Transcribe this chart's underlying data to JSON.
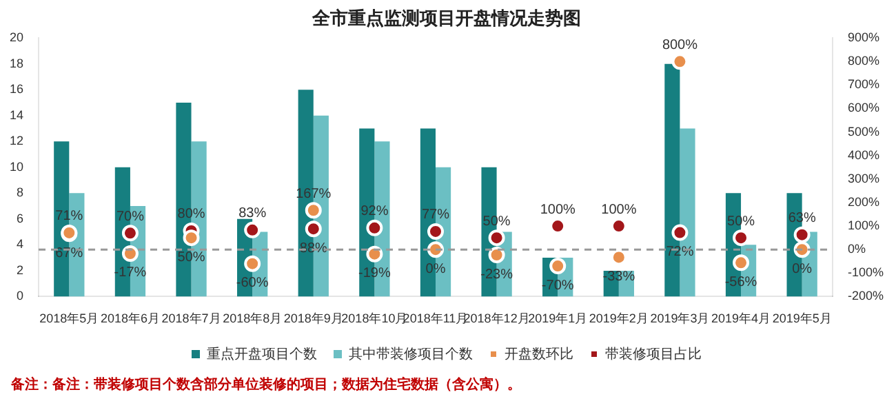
{
  "chart_data": {
    "type": "bar",
    "title": "全市重点监测项目开盘情况走势图",
    "categories": [
      "2018年5月",
      "2018年6月",
      "2018年7月",
      "2018年8月",
      "2018年9月",
      "2018年10月",
      "2018年11月",
      "2018年12月",
      "2019年1月",
      "2019年2月",
      "2019年3月",
      "2019年4月",
      "2019年5月"
    ],
    "series": [
      {
        "name": "重点开盘项目个数",
        "color": "#167f80",
        "values": [
          12,
          10,
          15,
          6,
          16,
          13,
          13,
          10,
          3,
          2,
          18,
          8,
          8
        ]
      },
      {
        "name": "其中带装修项目个数",
        "color": "#6bbfc3",
        "values": [
          8,
          7,
          12,
          5,
          14,
          12,
          10,
          5,
          3,
          2,
          13,
          4,
          5
        ]
      },
      {
        "name": "开盘数环比",
        "type": "scatter",
        "axis": "y2",
        "color": "#e88f4c",
        "values": [
          71,
          -17,
          50,
          -60,
          167,
          -19,
          0,
          -23,
          -70,
          -33,
          800,
          -56,
          0
        ],
        "value_labels": [
          "71%",
          "-17%",
          "50%",
          "-60%",
          "167%",
          "-19%",
          "0%",
          "-23%",
          "-70%",
          "-33%",
          "800%",
          "-56%",
          "0%"
        ]
      },
      {
        "name": "带装修项目占比",
        "type": "scatter",
        "axis": "y2",
        "color": "#a3161a",
        "values": [
          67,
          70,
          80,
          83,
          88,
          92,
          77,
          50,
          100,
          100,
          72,
          50,
          63
        ],
        "value_labels": [
          "67%",
          "70%",
          "80%",
          "83%",
          "88%",
          "92%",
          "77%",
          "50%",
          "100%",
          "100%",
          "72%",
          "50%",
          "63%"
        ]
      }
    ],
    "ylim": [
      0,
      20
    ],
    "yticks": [
      0,
      2,
      4,
      6,
      8,
      10,
      12,
      14,
      16,
      18,
      20
    ],
    "y2lim": [
      -200,
      900
    ],
    "y2ticks": [
      {
        "value": -200,
        "label": "-200%"
      },
      {
        "value": -100,
        "label": "-100%"
      },
      {
        "value": 0,
        "label": "0%"
      },
      {
        "value": 100,
        "label": "100%"
      },
      {
        "value": 200,
        "label": "200%"
      },
      {
        "value": 300,
        "label": "300%"
      },
      {
        "value": 400,
        "label": "400%"
      },
      {
        "value": 500,
        "label": "500%"
      },
      {
        "value": 600,
        "label": "600%"
      },
      {
        "value": 700,
        "label": "700%"
      },
      {
        "value": 800,
        "label": "800%"
      },
      {
        "value": 900,
        "label": "900%"
      }
    ],
    "ref_lines": [
      {
        "axis": "y2",
        "value": 0,
        "color": "#999999",
        "line_style": "dashed"
      }
    ],
    "marker": "circle",
    "grid": false,
    "legend": "bottom",
    "annotations": [
      "备注：备注：带装修项目个数含部分单位装修的项目；数据为住宅数据（含公寓）。"
    ]
  }
}
